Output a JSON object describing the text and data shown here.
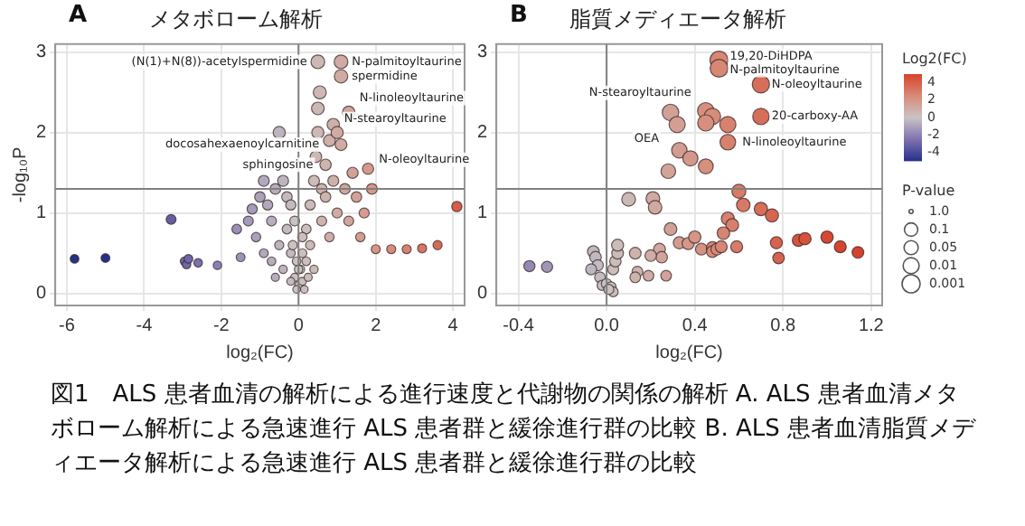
{
  "chart_data": [
    {
      "type": "bubble",
      "title": "メタボローム解析",
      "xlabel": "log₂(FC)",
      "ylabel": "-log₁₀P",
      "x": [
        -5.8,
        -5.0,
        -3.3,
        -2.95,
        -2.9,
        -2.85,
        -2.6,
        -2.1,
        -1.6,
        -1.5,
        -1.3,
        -1.2,
        -1.0,
        -1.1,
        -0.9,
        -0.8,
        -0.7,
        -0.6,
        -0.5,
        -0.4,
        -0.3,
        -0.2,
        -0.9,
        -0.7,
        -0.5,
        -0.6,
        -0.4,
        -0.3,
        -0.2,
        -0.1,
        -0.1,
        -0.15,
        0.0,
        0.05,
        -0.05,
        0.1,
        0.1,
        0.2,
        0.2,
        0.3,
        0.3,
        0.4,
        0.4,
        0.45,
        0.5,
        0.5,
        0.55,
        0.5,
        0.6,
        0.6,
        0.7,
        0.7,
        0.8,
        0.8,
        0.9,
        0.9,
        1.0,
        1.0,
        1.1,
        1.1,
        1.1,
        1.2,
        1.3,
        1.3,
        1.4,
        1.5,
        1.6,
        1.7,
        1.8,
        1.9,
        2.0,
        2.4,
        2.8,
        3.2,
        3.6,
        4.1,
        0.0,
        -0.05,
        0.1,
        0.15,
        -0.2,
        0.25
      ],
      "values": [
        0.43,
        0.44,
        0.92,
        0.4,
        0.36,
        0.43,
        0.38,
        0.35,
        0.8,
        0.45,
        0.9,
        1.05,
        1.2,
        0.7,
        1.4,
        1.1,
        0.9,
        1.3,
        2.0,
        1.4,
        1.2,
        1.1,
        0.5,
        0.4,
        0.6,
        0.2,
        0.3,
        0.8,
        0.5,
        0.2,
        0.9,
        0.6,
        0.1,
        0.3,
        0.05,
        0.5,
        0.15,
        0.8,
        0.4,
        1.1,
        0.6,
        1.4,
        0.3,
        1.7,
        2.0,
        2.3,
        2.5,
        2.88,
        1.3,
        0.9,
        1.6,
        1.2,
        1.9,
        0.7,
        2.1,
        1.4,
        1.0,
        2.0,
        2.88,
        2.7,
        1.85,
        1.3,
        2.25,
        0.9,
        1.5,
        1.2,
        0.7,
        1.0,
        1.55,
        1.3,
        0.55,
        0.55,
        0.55,
        0.56,
        0.6,
        1.08,
        0.3,
        0.4,
        0.7,
        0.05,
        0.15,
        0.2
      ],
      "sizes": [
        0.4,
        0.41,
        0.52,
        0.4,
        0.39,
        0.4,
        0.39,
        0.38,
        0.49,
        0.41,
        0.52,
        0.55,
        0.59,
        0.47,
        0.64,
        0.56,
        0.52,
        0.61,
        0.78,
        0.64,
        0.59,
        0.56,
        0.42,
        0.4,
        0.44,
        0.35,
        0.37,
        0.49,
        0.42,
        0.35,
        0.52,
        0.44,
        0.32,
        0.37,
        0.31,
        0.42,
        0.34,
        0.49,
        0.4,
        0.56,
        0.44,
        0.64,
        0.37,
        0.71,
        0.78,
        0.85,
        0.9,
        1,
        0.61,
        0.52,
        0.68,
        0.59,
        0.76,
        0.47,
        0.8,
        0.64,
        0.54,
        0.78,
        1,
        0.95,
        0.74,
        0.61,
        0.84,
        0.52,
        0.66,
        0.59,
        0.47,
        0.54,
        0.67,
        0.61,
        0.43,
        0.43,
        0.43,
        0.43,
        0.44,
        0.56,
        0.37,
        0.4,
        0.47,
        0.31,
        0.34,
        0.35
      ],
      "colors": [
        "#27318a",
        "#27318a",
        "#645ea4",
        "#7067a9",
        "#7067a9",
        "#7067a9",
        "#7c70ae",
        "#8c80b3",
        "#9a90b7",
        "#9d93b8",
        "#a49bba",
        "#a49bba",
        "#aaa1bb",
        "#aaa1bb",
        "#b0a8bd",
        "#b0a8bd",
        "#b6aebe",
        "#b6aebe",
        "#bcb5c0",
        "#bcb5c0",
        "#c2bbc1",
        "#c2bbc1",
        "#b0a8bd",
        "#b6aebe",
        "#bcb5c0",
        "#b6aebe",
        "#bcb5c0",
        "#c2bbc1",
        "#c2bbc1",
        "#c9c3c3",
        "#c9c3c3",
        "#c9c3c3",
        "#c9c3c3",
        "#c9c3c3",
        "#c9c3c3",
        "#cac0bf",
        "#cac0bf",
        "#cac0bf",
        "#cac0bf",
        "#cbbbb9",
        "#cbbbb9",
        "#cbbbb9",
        "#cbbbb9",
        "#ccb8b4",
        "#ccb8b4",
        "#ccb8b4",
        "#ccb8b4",
        "#ccb8b4",
        "#cdb4af",
        "#cdb4af",
        "#cdb4af",
        "#cdb4af",
        "#ceb0aa",
        "#ceb0aa",
        "#ceb0aa",
        "#ceb0aa",
        "#cfaba3",
        "#cfaba3",
        "#cfaba3",
        "#cfaba3",
        "#cfaba3",
        "#d0a69d",
        "#d0a69d",
        "#d0a69d",
        "#d2a298",
        "#d2a298",
        "#d39d92",
        "#d39d92",
        "#d4998c",
        "#d4998c",
        "#d59587",
        "#d78c7b",
        "#d8816f",
        "#d77662",
        "#d76b56",
        "#d75d47",
        "#c9c3c3",
        "#c9c3c3",
        "#cac0bf",
        "#cac0bf",
        "#c2bbc1",
        "#cbbbb9"
      ],
      "xlim": [
        -6.3,
        4.3
      ],
      "ylim": [
        -0.15,
        3.1
      ],
      "xticks": [
        -6,
        -4,
        -2,
        0,
        2,
        4
      ],
      "yticks": [
        0,
        1,
        2,
        3
      ],
      "grid": true,
      "ref_lines": [
        {
          "axis": "y",
          "value": 1.3,
          "color": "#808080"
        },
        {
          "axis": "x",
          "value": 0,
          "color": "#808080"
        }
      ],
      "annotations": [
        "A",
        {
          "text": "(N(1)+N(8))-acetylspermidine",
          "x": 0.5,
          "y": 2.88
        },
        {
          "text": "N-palmitoyltaurine",
          "x": 1.1,
          "y": 2.88
        },
        {
          "text": "spermidine",
          "x": 1.1,
          "y": 2.7
        },
        {
          "text": "N-linoleoyltaurine",
          "x": 1.3,
          "y": 2.25
        },
        {
          "text": "N-stearoyltaurine",
          "x": 0.9,
          "y": 2.1
        },
        {
          "text": "docosahexaenoylcarnitine",
          "x": 1.1,
          "y": 1.85
        },
        {
          "text": "sphingosine",
          "x": 0.8,
          "y": 1.6
        },
        {
          "text": "N-oleoyltaurine",
          "x": 1.8,
          "y": 1.55
        },
        "図1　ALS 患者血清の解析による進行速度と代謝物の関係の解析 A. ALS 患者血清メタボローム解析による急速進行 ALS 患者群と緩徐進行群の比較 B. ALS 患者血清脂質メディエータ解析による急速進行 ALS 患者群と緩徐進行群の比較"
      ]
    },
    {
      "type": "bubble",
      "title": "脂質メディエータ解析",
      "xlabel": "log₂(FC)",
      "x": [
        0.51,
        0.51,
        0.7,
        0.7,
        0.29,
        0.45,
        0.48,
        0.45,
        0.55,
        0.32,
        0.55,
        0.33,
        0.38,
        0.45,
        0.28,
        0.6,
        0.62,
        0.7,
        0.75,
        0.55,
        0.57,
        0.21,
        0.22,
        0.1,
        0.29,
        0.33,
        0.37,
        0.4,
        0.43,
        0.48,
        0.48,
        0.5,
        0.52,
        0.53,
        0.59,
        0.77,
        0.78,
        0.87,
        0.9,
        1.0,
        1.06,
        1.14,
        0.24,
        0.25,
        0.27,
        0.2,
        0.19,
        0.14,
        0.13,
        0.13,
        -0.35,
        -0.27,
        -0.06,
        -0.05,
        -0.04,
        -0.07,
        -0.03,
        -0.02,
        0.0,
        0.02,
        0.03,
        0.04,
        0.05,
        0.05,
        0.03,
        0.01
      ],
      "values": [
        2.9,
        2.8,
        2.6,
        2.2,
        2.25,
        2.27,
        2.2,
        2.12,
        2.1,
        2.1,
        1.88,
        1.78,
        1.68,
        1.58,
        1.52,
        1.27,
        1.1,
        1.05,
        0.97,
        0.93,
        0.85,
        1.18,
        1.07,
        1.17,
        0.8,
        0.63,
        0.62,
        0.7,
        0.55,
        0.57,
        0.52,
        0.55,
        0.58,
        0.75,
        0.58,
        0.63,
        0.44,
        0.66,
        0.68,
        0.7,
        0.58,
        0.51,
        0.55,
        0.45,
        0.22,
        0.47,
        0.22,
        0.27,
        0.5,
        0.2,
        0.34,
        0.33,
        0.52,
        0.45,
        0.35,
        0.3,
        0.2,
        0.1,
        0.12,
        0.08,
        0.3,
        0.4,
        0.5,
        0.6,
        0.02,
        0.05
      ],
      "sizes": [
        1,
        0.97,
        0.92,
        0.83,
        0.84,
        0.84,
        0.83,
        0.81,
        0.8,
        0.8,
        0.75,
        0.73,
        0.7,
        0.68,
        0.66,
        0.6,
        0.56,
        0.55,
        0.53,
        0.52,
        0.5,
        0.58,
        0.56,
        0.58,
        0.49,
        0.45,
        0.45,
        0.47,
        0.43,
        0.44,
        0.42,
        0.43,
        0.44,
        0.48,
        0.44,
        0.45,
        0.41,
        0.46,
        0.46,
        0.47,
        0.44,
        0.42,
        0.43,
        0.41,
        0.35,
        0.41,
        0.35,
        0.36,
        0.42,
        0.35,
        0.38,
        0.38,
        0.42,
        0.41,
        0.38,
        0.37,
        0.35,
        0.32,
        0.33,
        0.32,
        0.37,
        0.4,
        0.42,
        0.44,
        0.3,
        0.31
      ],
      "cvalues": [
        2.6,
        2.6,
        3.5,
        3.5,
        1.5,
        2.3,
        2.4,
        2.3,
        2.8,
        1.6,
        2.8,
        1.7,
        1.9,
        2.3,
        1.4,
        3.0,
        3.1,
        3.5,
        3.8,
        2.8,
        2.9,
        1.1,
        1.1,
        0.5,
        1.5,
        1.7,
        1.9,
        2.0,
        2.2,
        2.4,
        2.4,
        2.5,
        2.6,
        2.7,
        3.0,
        3.9,
        3.9,
        4.4,
        4.5,
        4.8,
        4.9,
        5.0,
        1.2,
        1.3,
        1.4,
        1.0,
        1.0,
        0.7,
        0.7,
        0.7,
        -1.8,
        -1.4,
        -0.3,
        -0.3,
        -0.2,
        -0.4,
        -0.2,
        -0.1,
        0,
        0.1,
        0.2,
        0.2,
        0.3,
        0.3,
        0.2,
        0.1
      ],
      "xlim": [
        -0.5,
        1.25
      ],
      "ylim": [
        -0.15,
        3.1
      ],
      "xticks": [
        -0.4,
        {
          "value": 0,
          "label": "0.0"
        },
        0.4,
        0.8,
        1.2
      ],
      "yticks": [
        0,
        1,
        2,
        3
      ],
      "grid": true,
      "ref_lines": [
        {
          "axis": "y",
          "value": 1.3,
          "color": "#808080"
        },
        {
          "axis": "x",
          "value": 0,
          "color": "#808080"
        }
      ],
      "clabel": "Log2(FC)",
      "clim": [
        -5,
        5
      ],
      "cticks": [
        -4,
        -2,
        0,
        2,
        4
      ],
      "legend_title": "P-value",
      "size_legend": [
        {
          "value": 0.05,
          "label": "1.0"
        },
        {
          "value": 0.54,
          "label": "0.1"
        },
        {
          "value": 0.61,
          "label": "0.05"
        },
        {
          "value": 0.78,
          "label": "0.01"
        },
        {
          "value": 1,
          "label": "0.001"
        }
      ],
      "annotations": [
        "B",
        {
          "text": "19,20-DiHDPA",
          "x": 0.51,
          "y": 2.9
        },
        {
          "text": "N-palmitoyltaurine",
          "x": 0.51,
          "y": 2.8
        },
        {
          "text": "N-oleoyltaurine",
          "x": 0.7,
          "y": 2.6
        },
        {
          "text": "N-stearoyltaurine",
          "x": 0.45,
          "y": 2.27
        },
        {
          "text": "20-carboxy-AA",
          "x": 0.7,
          "y": 2.2
        },
        {
          "text": "N-linoleoyltaurine",
          "x": 0.55,
          "y": 2.1
        },
        {
          "text": "OEA",
          "x": 0.32,
          "y": 2.1
        }
      ]
    }
  ]
}
